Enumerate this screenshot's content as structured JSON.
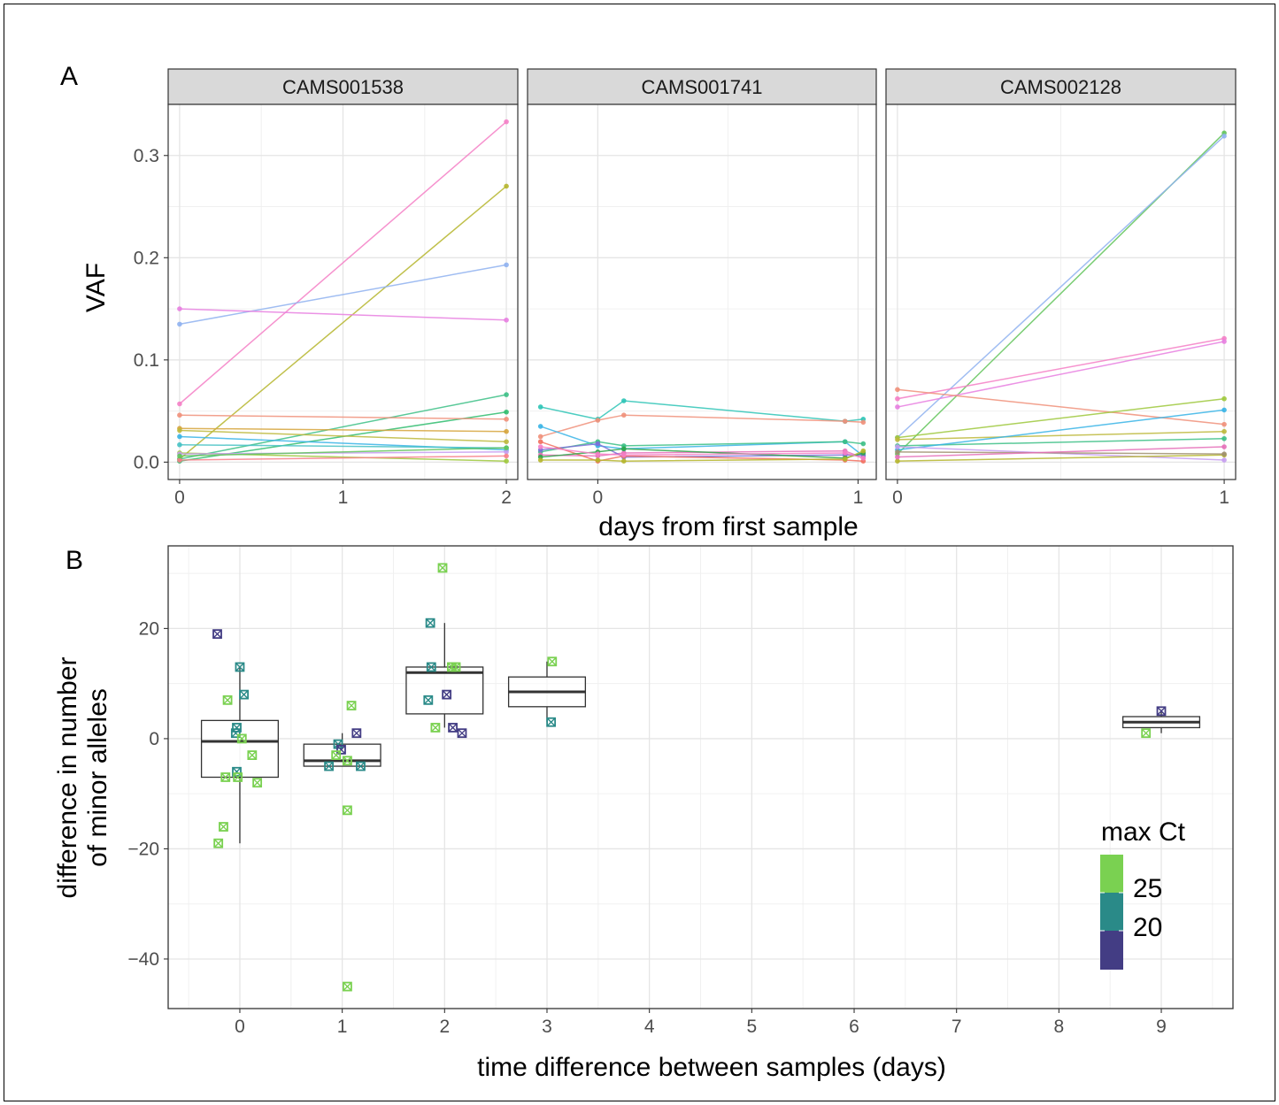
{
  "panel_a": {
    "letter": "A",
    "ylabel": "VAF",
    "xlabel": "days from first sample",
    "facets": [
      {
        "name": "CAMS001538",
        "xlim": [
          -0.07,
          2.07
        ],
        "xticks": [
          0,
          1,
          2
        ]
      },
      {
        "name": "CAMS001741",
        "xlim": [
          -0.27,
          1.07
        ],
        "xticks": [
          0,
          1
        ]
      },
      {
        "name": "CAMS002128",
        "xlim": [
          -0.035,
          1.035
        ],
        "xticks": [
          0,
          1
        ]
      }
    ],
    "ylim": [
      -0.017,
      0.35
    ],
    "yticks": [
      0.0,
      0.1,
      0.2,
      0.3
    ],
    "ytick_labels": [
      "0.0",
      "0.1",
      "0.2",
      "0.3"
    ]
  },
  "panel_b": {
    "letter": "B",
    "ylabel_line1": "difference in number",
    "ylabel_line2": "of minor alleles",
    "xlabel": "time difference between samples (days)",
    "xlim": [
      -0.7,
      9.7
    ],
    "ylim": [
      -49,
      35
    ],
    "xticks": [
      0,
      1,
      2,
      3,
      4,
      5,
      6,
      7,
      8,
      9
    ],
    "yticks": [
      -40,
      -20,
      0,
      20
    ],
    "ytick_labels": [
      "−40",
      "−20",
      "0",
      "20"
    ],
    "legend": {
      "title": "max Ct",
      "labels": [
        "25",
        "20"
      ],
      "colors": [
        "#7ad151",
        "#2a8a88",
        "#433d84"
      ]
    }
  },
  "chart_data": [
    {
      "type": "line",
      "facet": "CAMS001538",
      "xlabel": "days from first sample",
      "ylabel": "VAF",
      "grid": true,
      "series": [
        {
          "color": "#f47fc6",
          "points": [
            [
              0,
              0.057
            ],
            [
              2,
              0.333
            ]
          ]
        },
        {
          "color": "#b5b52c",
          "points": [
            [
              0,
              0.003
            ],
            [
              2,
              0.27
            ]
          ]
        },
        {
          "color": "#8fb1f0",
          "points": [
            [
              0,
              0.135
            ],
            [
              2,
              0.193
            ]
          ]
        },
        {
          "color": "#e77fe0",
          "points": [
            [
              0,
              0.15
            ],
            [
              2,
              0.139
            ]
          ]
        },
        {
          "color": "#3cbf86",
          "points": [
            [
              0,
              0.003
            ],
            [
              2,
              0.066
            ]
          ]
        },
        {
          "color": "#2fbc6e",
          "points": [
            [
              0,
              0.001
            ],
            [
              2,
              0.049
            ]
          ]
        },
        {
          "color": "#f0907a",
          "points": [
            [
              0,
              0.046
            ],
            [
              2,
              0.042
            ]
          ]
        },
        {
          "color": "#d6a43c",
          "points": [
            [
              0,
              0.033
            ],
            [
              2,
              0.03
            ]
          ]
        },
        {
          "color": "#38b4e6",
          "points": [
            [
              0,
              0.025
            ],
            [
              2,
              0.012
            ]
          ]
        },
        {
          "color": "#bdb83c",
          "points": [
            [
              0,
              0.031
            ],
            [
              2,
              0.02
            ]
          ]
        },
        {
          "color": "#46c2c4",
          "points": [
            [
              0,
              0.017
            ],
            [
              2,
              0.014
            ]
          ]
        },
        {
          "color": "#9ec83c",
          "points": [
            [
              0,
              0.009
            ],
            [
              2,
              0.001
            ]
          ]
        },
        {
          "color": "#c59cf0",
          "points": [
            [
              0,
              0.008
            ],
            [
              2,
              0.01
            ]
          ]
        },
        {
          "color": "#f77f88",
          "points": [
            [
              0,
              0.002
            ],
            [
              2,
              0.006
            ]
          ]
        },
        {
          "color": "#61c45a",
          "points": [
            [
              0,
              0.006
            ],
            [
              2,
              0.014
            ]
          ]
        }
      ]
    },
    {
      "type": "line",
      "facet": "CAMS001741",
      "xlabel": "days from first sample",
      "ylabel": "VAF",
      "grid": true,
      "series": [
        {
          "color": "#2ec4b6",
          "points": [
            [
              -0.22,
              0.054
            ],
            [
              0,
              0.042
            ],
            [
              0.1,
              0.06
            ],
            [
              0.95,
              0.04
            ],
            [
              1.02,
              0.042
            ]
          ]
        },
        {
          "color": "#f0907a",
          "points": [
            [
              -0.22,
              0.025
            ],
            [
              0,
              0.041
            ],
            [
              0.1,
              0.046
            ],
            [
              0.95,
              0.04
            ],
            [
              1.02,
              0.039
            ]
          ]
        },
        {
          "color": "#38b4e6",
          "points": [
            [
              -0.22,
              0.035
            ],
            [
              0,
              0.016
            ],
            [
              0.1,
              0.013
            ],
            [
              0.95,
              0.02
            ],
            [
              1.02,
              0.006
            ]
          ]
        },
        {
          "color": "#3cbf86",
          "points": [
            [
              -0.22,
              0.01
            ],
            [
              0,
              0.02
            ],
            [
              0.1,
              0.016
            ],
            [
              0.95,
              0.02
            ],
            [
              1.02,
              0.018
            ]
          ]
        },
        {
          "color": "#e56fb8",
          "points": [
            [
              -0.22,
              0.007
            ],
            [
              0,
              0.006
            ],
            [
              0.1,
              0.009
            ],
            [
              0.95,
              0.011
            ],
            [
              1.02,
              0.004
            ]
          ]
        },
        {
          "color": "#7b6fd8",
          "points": [
            [
              -0.22,
              0.012
            ],
            [
              0,
              0.018
            ],
            [
              0.1,
              0.005
            ],
            [
              0.95,
              0.007
            ],
            [
              1.02,
              0.007
            ]
          ]
        },
        {
          "color": "#f2705f",
          "points": [
            [
              -0.22,
              0.02
            ],
            [
              0,
              0.001
            ],
            [
              0.1,
              0.006
            ],
            [
              0.95,
              0.002
            ],
            [
              1.02,
              0.001
            ]
          ]
        },
        {
          "color": "#2fa64a",
          "points": [
            [
              -0.22,
              0.005
            ],
            [
              0,
              0.01
            ],
            [
              0.1,
              0.013
            ],
            [
              0.95,
              0.004
            ],
            [
              1.02,
              0.009
            ]
          ]
        },
        {
          "color": "#b5b52c",
          "points": [
            [
              -0.22,
              0.002
            ],
            [
              0,
              0.002
            ],
            [
              0.1,
              0.001
            ],
            [
              0.95,
              0.003
            ],
            [
              1.02,
              0.011
            ]
          ]
        },
        {
          "color": "#f47fc6",
          "points": [
            [
              -0.22,
              0.015
            ],
            [
              0,
              0.008
            ],
            [
              0.1,
              0.007
            ],
            [
              0.95,
              0.009
            ],
            [
              1.02,
              0.004
            ]
          ]
        }
      ]
    },
    {
      "type": "line",
      "facet": "CAMS002128",
      "xlabel": "days from first sample",
      "ylabel": "VAF",
      "grid": true,
      "series": [
        {
          "color": "#61c45a",
          "points": [
            [
              0,
              0.008
            ],
            [
              1,
              0.322
            ]
          ]
        },
        {
          "color": "#8fb1f0",
          "points": [
            [
              0,
              0.024
            ],
            [
              1,
              0.319
            ]
          ]
        },
        {
          "color": "#f47fc6",
          "points": [
            [
              0,
              0.062
            ],
            [
              1,
              0.121
            ]
          ]
        },
        {
          "color": "#e77fe0",
          "points": [
            [
              0,
              0.054
            ],
            [
              1,
              0.118
            ]
          ]
        },
        {
          "color": "#f0907a",
          "points": [
            [
              0,
              0.071
            ],
            [
              1,
              0.037
            ]
          ]
        },
        {
          "color": "#9ec83c",
          "points": [
            [
              0,
              0.024
            ],
            [
              1,
              0.062
            ]
          ]
        },
        {
          "color": "#bdb83c",
          "points": [
            [
              0,
              0.022
            ],
            [
              1,
              0.03
            ]
          ]
        },
        {
          "color": "#3cbf86",
          "points": [
            [
              0,
              0.016
            ],
            [
              1,
              0.023
            ]
          ]
        },
        {
          "color": "#38b4e6",
          "points": [
            [
              0,
              0.012
            ],
            [
              1,
              0.051
            ]
          ]
        },
        {
          "color": "#c59cf0",
          "points": [
            [
              0,
              0.015
            ],
            [
              1,
              0.002
            ]
          ]
        },
        {
          "color": "#b5b52c",
          "points": [
            [
              0,
              0.001
            ],
            [
              1,
              0.007
            ]
          ]
        },
        {
          "color": "#a09070",
          "points": [
            [
              0,
              0.01
            ],
            [
              1,
              0.008
            ]
          ]
        },
        {
          "color": "#e56fb8",
          "points": [
            [
              0,
              0.005
            ],
            [
              1,
              0.015
            ]
          ]
        }
      ]
    },
    {
      "type": "scatter",
      "subtype": "boxplot-with-jitter",
      "xlabel": "time difference between samples (days)",
      "ylabel": "difference in number of minor alleles",
      "legend_title": "max Ct",
      "grid": true,
      "boxes": [
        {
          "x": 0,
          "min": -19,
          "q1": -7,
          "median": -0.5,
          "q3": 3.3,
          "max": 13
        },
        {
          "x": 1,
          "min": -5,
          "q1": -5,
          "median": -4,
          "q3": -1,
          "max": 1
        },
        {
          "x": 2,
          "min": 2,
          "q1": 4.5,
          "median": 12,
          "q3": 13,
          "max": 21
        },
        {
          "x": 3,
          "min": 3,
          "q1": 5.8,
          "median": 8.5,
          "q3": 11.2,
          "max": 14
        },
        {
          "x": 9,
          "min": 1,
          "q1": 2,
          "median": 3,
          "q3": 4,
          "max": 5
        }
      ],
      "points": [
        {
          "x": -0.22,
          "y": 19,
          "ct": 17
        },
        {
          "x": 0.0,
          "y": 13,
          "ct": 21
        },
        {
          "x": 0.04,
          "y": 8,
          "ct": 21
        },
        {
          "x": -0.12,
          "y": 7,
          "ct": 25
        },
        {
          "x": -0.03,
          "y": 2,
          "ct": 21
        },
        {
          "x": -0.04,
          "y": 1,
          "ct": 22
        },
        {
          "x": 0.02,
          "y": 0,
          "ct": 25
        },
        {
          "x": 0.12,
          "y": -3,
          "ct": 25
        },
        {
          "x": -0.03,
          "y": -6,
          "ct": 21
        },
        {
          "x": -0.14,
          "y": -7,
          "ct": 25
        },
        {
          "x": -0.02,
          "y": -7,
          "ct": 25
        },
        {
          "x": 0.17,
          "y": -8,
          "ct": 25
        },
        {
          "x": -0.16,
          "y": -16,
          "ct": 25
        },
        {
          "x": -0.21,
          "y": -19,
          "ct": 25
        },
        {
          "x": 1.09,
          "y": 6,
          "ct": 25
        },
        {
          "x": 1.14,
          "y": 1,
          "ct": 17
        },
        {
          "x": 0.96,
          "y": -1,
          "ct": 21
        },
        {
          "x": 0.99,
          "y": -2,
          "ct": 17
        },
        {
          "x": 0.94,
          "y": -3,
          "ct": 25
        },
        {
          "x": 1.05,
          "y": -4,
          "ct": 25
        },
        {
          "x": 0.87,
          "y": -5,
          "ct": 20
        },
        {
          "x": 1.18,
          "y": -5,
          "ct": 21
        },
        {
          "x": 1.05,
          "y": -13,
          "ct": 25
        },
        {
          "x": 1.05,
          "y": -45,
          "ct": 25
        },
        {
          "x": 1.98,
          "y": 31,
          "ct": 25
        },
        {
          "x": 1.86,
          "y": 21,
          "ct": 21
        },
        {
          "x": 1.87,
          "y": 13,
          "ct": 21
        },
        {
          "x": 2.07,
          "y": 13,
          "ct": 25
        },
        {
          "x": 2.11,
          "y": 13,
          "ct": 25
        },
        {
          "x": 2.02,
          "y": 8,
          "ct": 17
        },
        {
          "x": 1.84,
          "y": 7,
          "ct": 21
        },
        {
          "x": 1.91,
          "y": 2,
          "ct": 25
        },
        {
          "x": 2.08,
          "y": 2,
          "ct": 17
        },
        {
          "x": 2.17,
          "y": 1,
          "ct": 17
        },
        {
          "x": 3.05,
          "y": 14,
          "ct": 25
        },
        {
          "x": 3.04,
          "y": 3,
          "ct": 21
        },
        {
          "x": 9.0,
          "y": 5,
          "ct": 17
        },
        {
          "x": 8.85,
          "y": 1,
          "ct": 25
        }
      ]
    }
  ]
}
